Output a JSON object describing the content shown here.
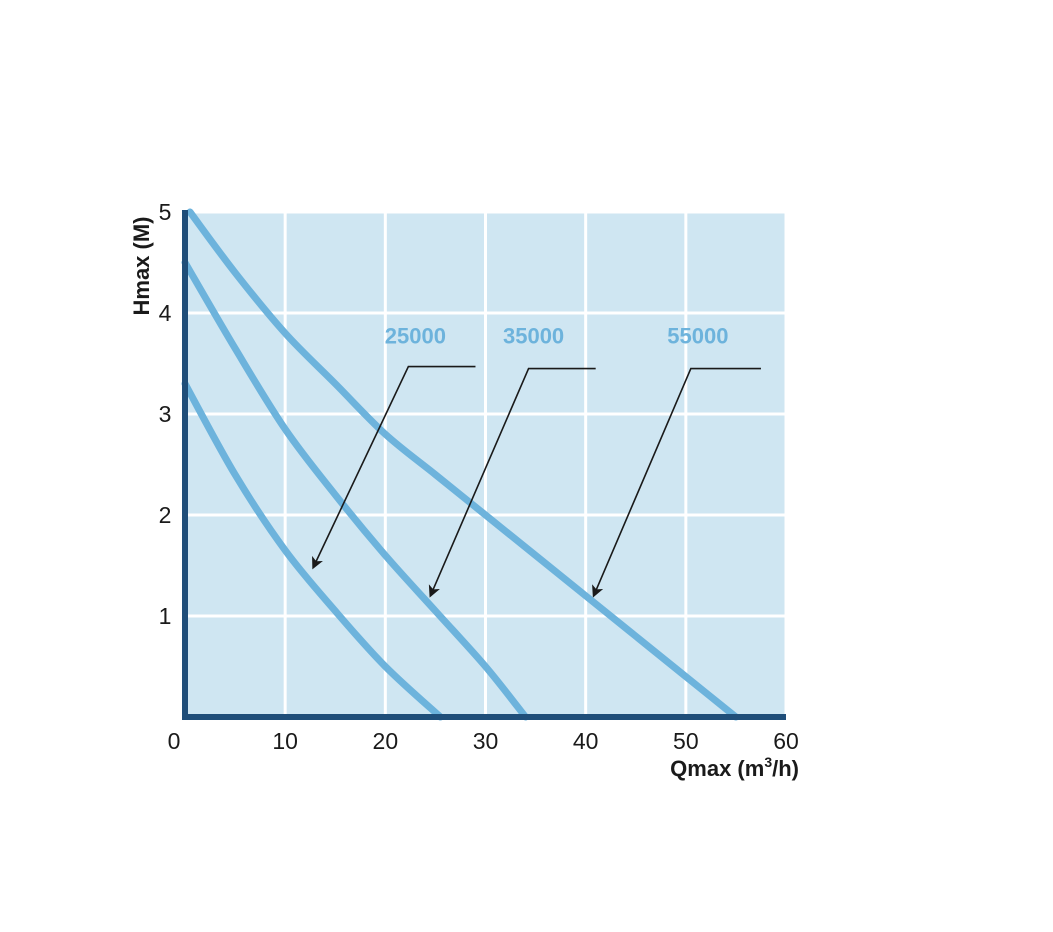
{
  "chart_data": {
    "type": "line",
    "title": "",
    "xlabel": "Qmax (m",
    "xlabel_sup": "3",
    "xlabel_tail": "/h)",
    "ylabel": "Hmax (M)",
    "xlim": [
      0,
      60
    ],
    "ylim": [
      0,
      5
    ],
    "x_ticks": [
      "0",
      "10",
      "20",
      "30",
      "40",
      "50",
      "60"
    ],
    "y_ticks": [
      "1",
      "2",
      "3",
      "4",
      "5"
    ],
    "grid": true,
    "colors": {
      "plot_bg": "#cfe6f2",
      "grid": "#ffffff",
      "axis": "#1f4e79",
      "curve": "#6db3dc",
      "label": "#6db3dc",
      "leader": "#1a1a1a"
    },
    "series": [
      {
        "name": "25000",
        "x": [
          0,
          5,
          10,
          15,
          20,
          25.5
        ],
        "y": [
          3.3,
          2.4,
          1.65,
          1.05,
          0.5,
          0
        ]
      },
      {
        "name": "35000",
        "x": [
          0,
          5,
          10,
          15,
          20,
          25,
          30,
          34
        ],
        "y": [
          4.5,
          3.65,
          2.85,
          2.2,
          1.6,
          1.05,
          0.5,
          0
        ]
      },
      {
        "name": "55000",
        "x": [
          0.5,
          5,
          10,
          15,
          20,
          25,
          30,
          35,
          40,
          45,
          50,
          55
        ],
        "y": [
          5.0,
          4.4,
          3.8,
          3.3,
          2.8,
          2.4,
          2.0,
          1.6,
          1.2,
          0.8,
          0.4,
          0
        ]
      }
    ],
    "annotations": [
      {
        "text": "25000",
        "text_at": [
          23,
          3.7
        ],
        "line_from": [
          29,
          3.47
        ],
        "line_elbow": [
          22.3,
          3.47
        ],
        "arrow_to": [
          12.8,
          1.48
        ]
      },
      {
        "text": "35000",
        "text_at": [
          34.8,
          3.7
        ],
        "line_from": [
          41,
          3.45
        ],
        "line_elbow": [
          34.3,
          3.45
        ],
        "arrow_to": [
          24.5,
          1.2
        ]
      },
      {
        "text": "55000",
        "text_at": [
          51.2,
          3.7
        ],
        "line_from": [
          57.5,
          3.45
        ],
        "line_elbow": [
          50.5,
          3.45
        ],
        "arrow_to": [
          40.8,
          1.2
        ]
      }
    ]
  }
}
